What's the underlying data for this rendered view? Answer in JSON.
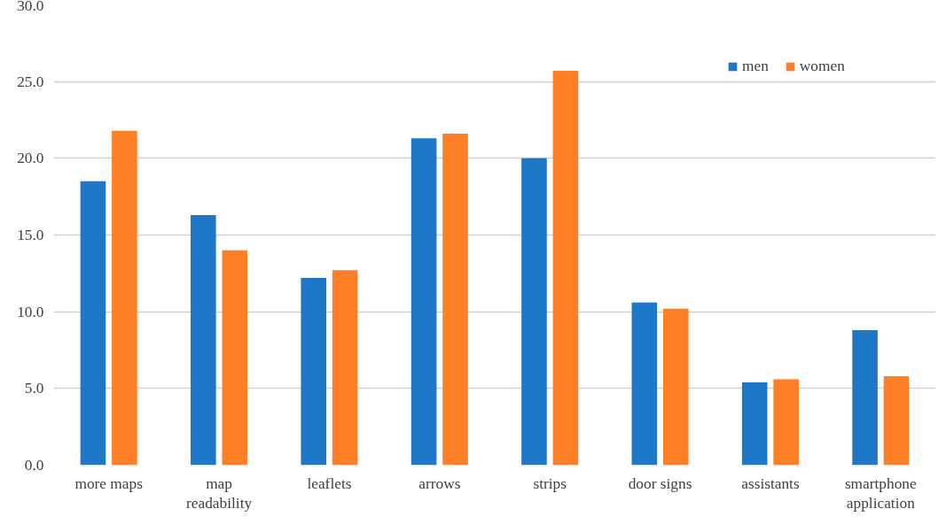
{
  "chart_data": {
    "type": "bar",
    "categories": [
      "more maps",
      "map readability",
      "leaflets",
      "arrows",
      "strips",
      "door signs",
      "assistants",
      "smartphone application"
    ],
    "series": [
      {
        "name": "men",
        "color": "#1f77c8",
        "values": [
          18.5,
          16.3,
          12.2,
          21.3,
          20.0,
          10.6,
          5.4,
          8.8
        ]
      },
      {
        "name": "women",
        "color": "#ff7f27",
        "values": [
          21.8,
          14.0,
          12.7,
          21.6,
          25.7,
          10.2,
          5.6,
          5.8
        ]
      }
    ],
    "ylim": [
      0,
      30
    ],
    "yticks": [
      {
        "value": 0,
        "label": "0.0"
      },
      {
        "value": 5,
        "label": "5.0"
      },
      {
        "value": 10,
        "label": "10.0"
      },
      {
        "value": 15,
        "label": "15.0"
      },
      {
        "value": 20,
        "label": "20.0"
      },
      {
        "value": 25,
        "label": "25.0"
      },
      {
        "value": 30,
        "label": "30.0"
      }
    ],
    "grid": "y",
    "legend": "top right"
  }
}
